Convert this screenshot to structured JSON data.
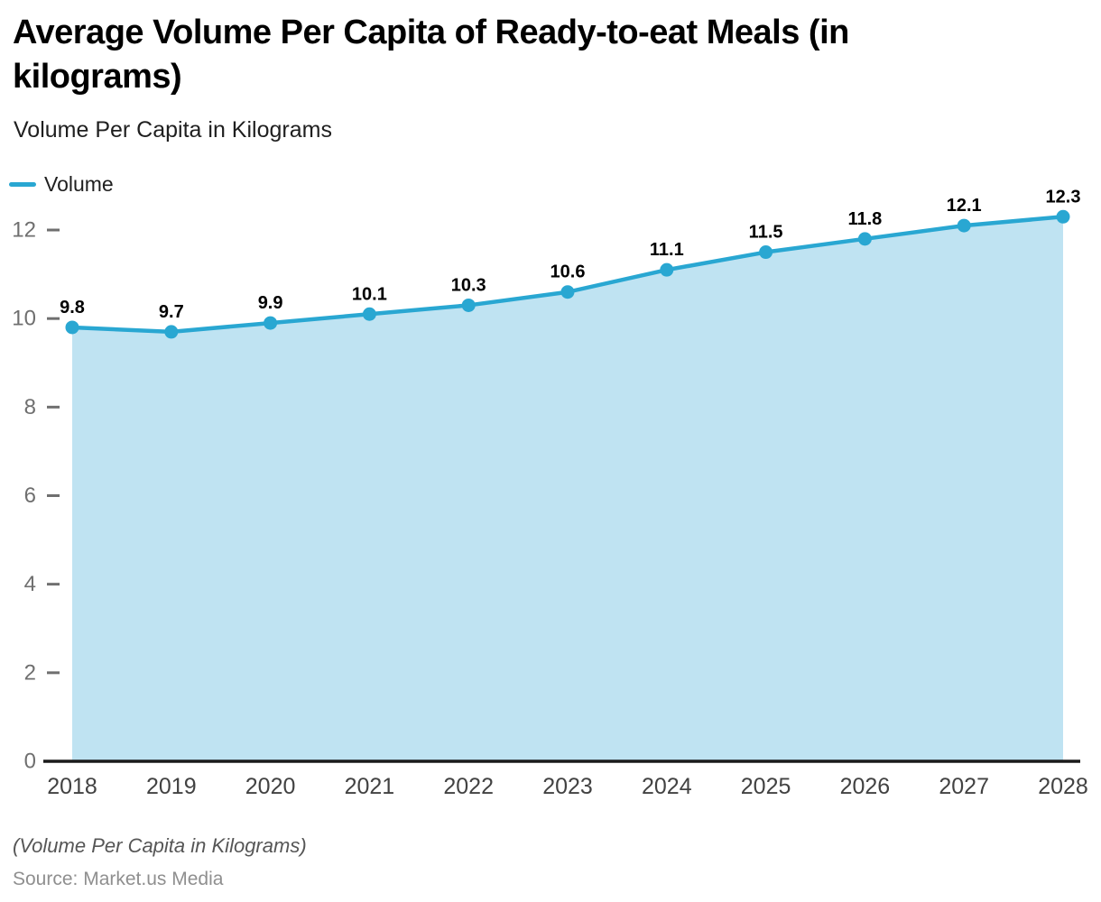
{
  "page": {
    "title": "Average Volume Per Capita of Ready-to-eat Meals (in kilograms)",
    "subtitle": "Volume Per Capita in Kilograms",
    "footnote": "(Volume Per Capita in Kilograms)",
    "source": "Source: Market.us Media"
  },
  "legend": {
    "items": [
      {
        "label": "Volume",
        "color": "#29A7D2"
      }
    ]
  },
  "colors": {
    "line": "#29A7D2",
    "marker": "#29A7D2",
    "area_fill": "#BFE3F2",
    "axis_line": "#1A1A1A",
    "y_tick": "#6F6F6F",
    "x_label": "#424242",
    "value_label": "#000000"
  },
  "chart_data": {
    "type": "area",
    "title": "Average Volume Per Capita of Ready-to-eat Meals (in kilograms)",
    "subtitle": "Volume Per Capita in Kilograms",
    "xlabel": "",
    "ylabel": "Volume Per Capita in Kilograms",
    "categories": [
      "2018",
      "2019",
      "2020",
      "2021",
      "2022",
      "2023",
      "2024",
      "2025",
      "2026",
      "2027",
      "2028"
    ],
    "series": [
      {
        "name": "Volume",
        "values": [
          9.8,
          9.7,
          9.9,
          10.1,
          10.3,
          10.6,
          11.1,
          11.5,
          11.8,
          12.1,
          12.3
        ]
      }
    ],
    "ylim": [
      0,
      13
    ],
    "y_ticks": [
      0,
      2,
      4,
      6,
      8,
      10,
      12
    ],
    "grid": false,
    "data_labels": true,
    "legend_position": "top-left"
  }
}
